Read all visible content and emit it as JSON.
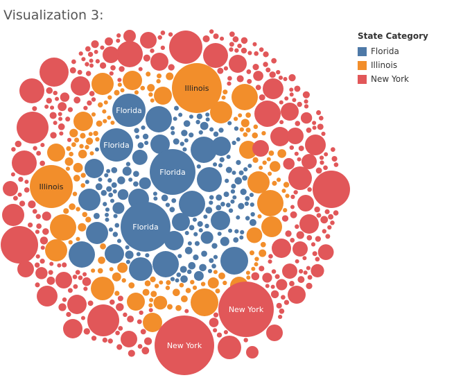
{
  "title": "Visualization 3:",
  "legend": {
    "title": "State Category",
    "items": [
      {
        "name": "Florida",
        "color": "#4e79a7"
      },
      {
        "name": "Illinois",
        "color": "#f28e2b"
      },
      {
        "name": "New York",
        "color": "#e15759"
      }
    ]
  },
  "chart_data": {
    "type": "packed-bubble",
    "legend_placement": "top-right",
    "categories": [
      "Florida",
      "Illinois",
      "New York"
    ],
    "labeled_bubbles": [
      {
        "label": "Illinois",
        "category": "Illinois"
      },
      {
        "label": "Illinois",
        "category": "Illinois"
      },
      {
        "label": "Florida",
        "category": "Florida"
      },
      {
        "label": "Florida",
        "category": "Florida"
      },
      {
        "label": "Florida",
        "category": "Florida"
      },
      {
        "label": "Florida",
        "category": "Florida"
      },
      {
        "label": "New York",
        "category": "New York"
      },
      {
        "label": "New York",
        "category": "New York"
      }
    ]
  }
}
